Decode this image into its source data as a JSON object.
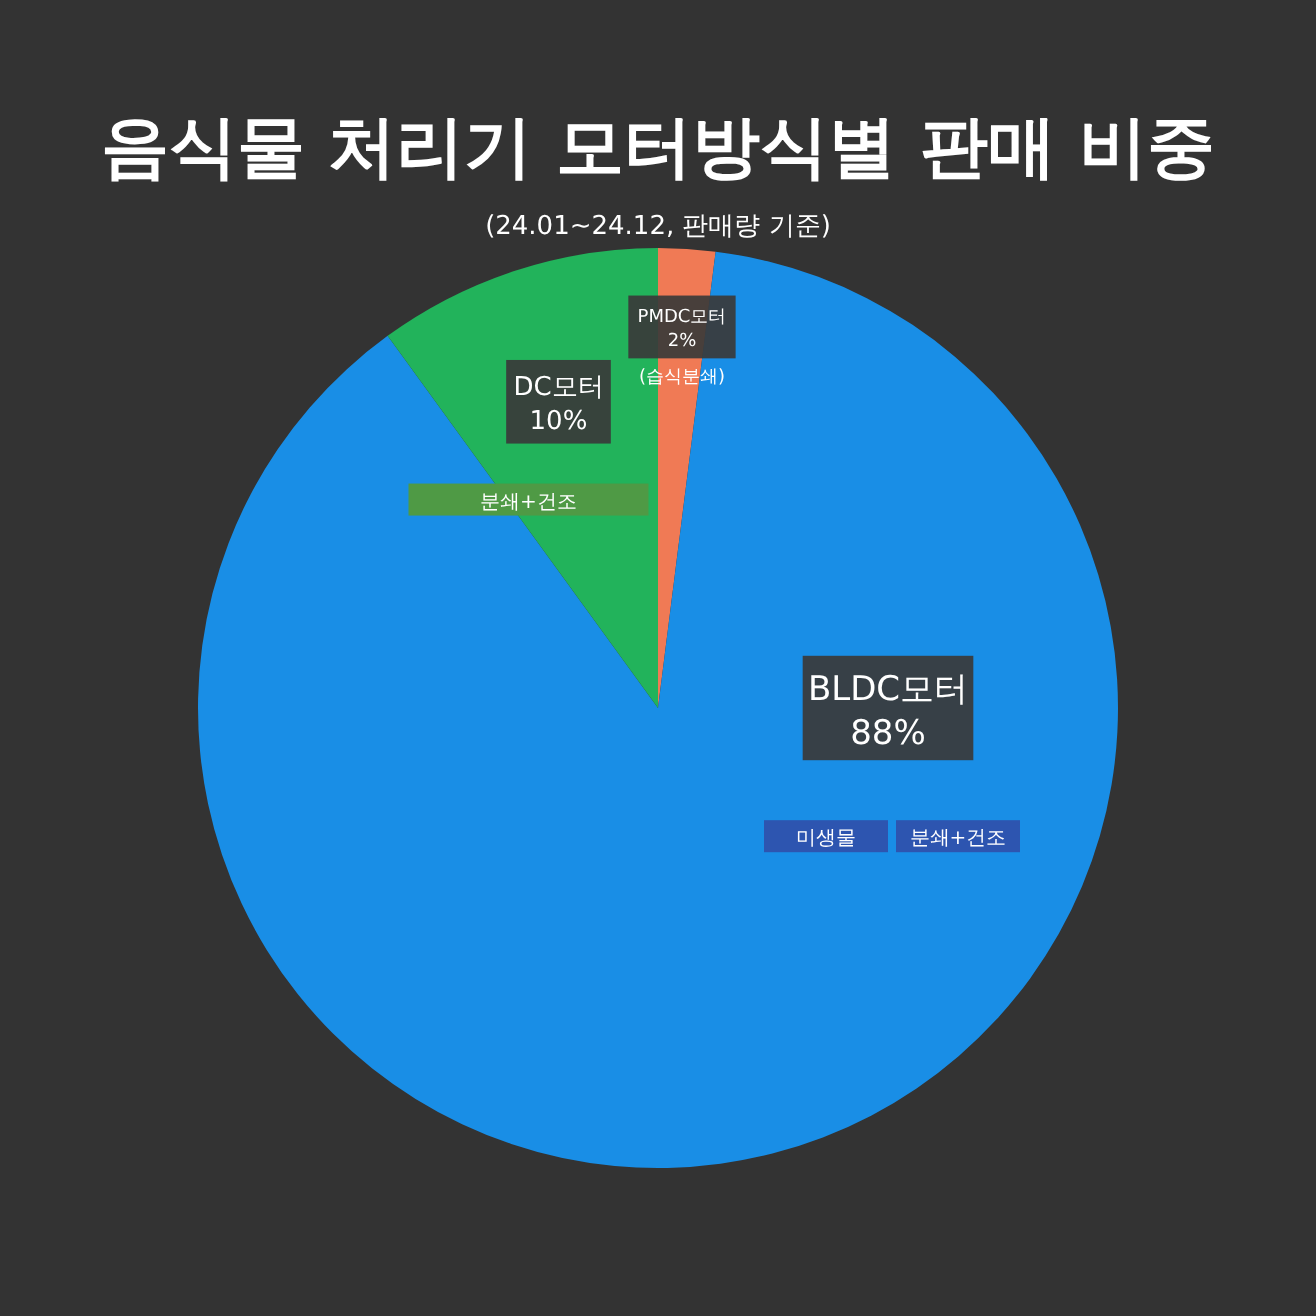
{
  "chart_data": {
    "type": "pie",
    "title": "음식물 처리기 모터방식별 판매 비중",
    "subtitle": "(24.01~24.12, 판매량 기준)",
    "categories": [
      "PMDC모터",
      "BLDC모터",
      "DC모터"
    ],
    "values": [
      2,
      88,
      10
    ],
    "colors": [
      "#f07a55",
      "#198ee6",
      "#22b35b"
    ],
    "value_labels": [
      "2%",
      "88%",
      "10%"
    ],
    "annotations": [
      "(습식분쇄)",
      "미생물",
      "분쇄+건조",
      "분쇄+건조"
    ]
  }
}
